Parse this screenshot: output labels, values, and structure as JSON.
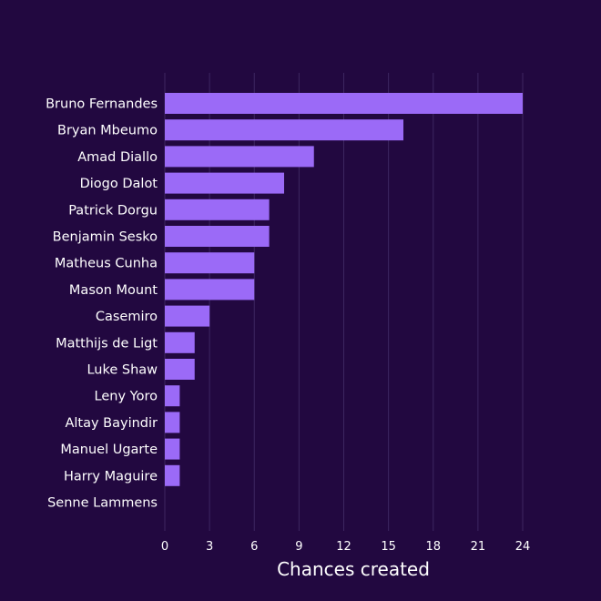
{
  "chart_data": {
    "type": "bar",
    "orientation": "horizontal",
    "categories": [
      "Bruno Fernandes",
      "Bryan Mbeumo",
      "Amad Diallo",
      "Diogo Dalot",
      "Patrick Dorgu",
      "Benjamin Sesko",
      "Matheus Cunha",
      "Mason Mount",
      "Casemiro",
      "Matthijs de Ligt",
      "Luke Shaw",
      "Leny Yoro",
      "Altay Bayindir",
      "Manuel Ugarte",
      "Harry Maguire",
      "Senne Lammens"
    ],
    "values": [
      24,
      16,
      10,
      8,
      7,
      7,
      6,
      6,
      3,
      2,
      2,
      1,
      1,
      1,
      1,
      0
    ],
    "xlabel": "Chances created",
    "ylabel": "",
    "xlim": [
      0,
      24
    ],
    "xticks": [
      0,
      3,
      6,
      9,
      12,
      15,
      18,
      21,
      24
    ],
    "grid": "vertical",
    "colors": {
      "background": "#220840",
      "bar": "#9b6af7",
      "grid": "#3d2660",
      "text": "#ffffff"
    }
  }
}
